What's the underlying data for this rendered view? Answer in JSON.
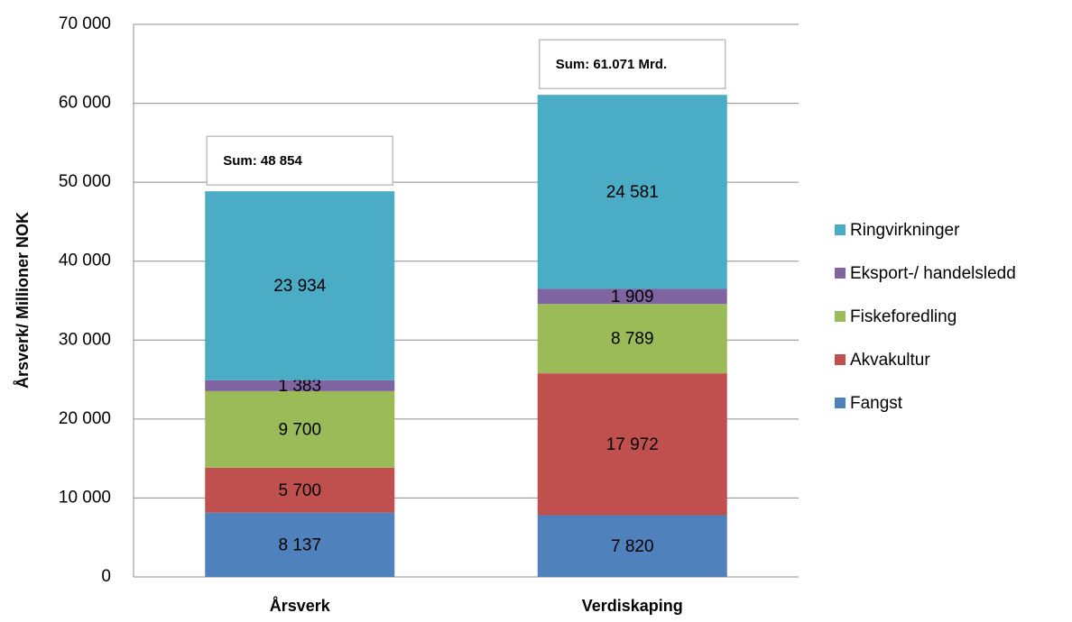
{
  "chart_data": {
    "type": "stacked_bar",
    "ylabel": "Årsverk/ Millioner NOK",
    "categories": [
      "Årsverk",
      "Verdiskaping"
    ],
    "series": [
      {
        "name": "Fangst",
        "color": "#4f81bd",
        "values": [
          8137,
          7820
        ],
        "value_labels": [
          "8 137",
          "7 820"
        ]
      },
      {
        "name": "Akvakultur",
        "color": "#c0504d",
        "values": [
          5700,
          17972
        ],
        "value_labels": [
          "5 700",
          "17 972"
        ]
      },
      {
        "name": "Fiskeforedling",
        "color": "#9bbb59",
        "values": [
          9700,
          8789
        ],
        "value_labels": [
          "9 700",
          "8 789"
        ]
      },
      {
        "name": "Eksport-/ handelsledd",
        "color": "#8064a2",
        "values": [
          1383,
          1909
        ],
        "value_labels": [
          "1 383",
          "1 909"
        ]
      },
      {
        "name": "Ringvirkninger",
        "color": "#4bacc6",
        "values": [
          23934,
          24581
        ],
        "value_labels": [
          "23 934",
          "24 581"
        ]
      }
    ],
    "annotations": [
      "Sum: 48 854",
      "Sum: 61.071 Mrd."
    ],
    "ylim": [
      0,
      70000
    ],
    "yticks": [
      0,
      {
        "value": 10000,
        "label": "10 000"
      },
      {
        "value": 20000,
        "label": "20 000"
      },
      {
        "value": 30000,
        "label": "30 000"
      },
      {
        "value": 40000,
        "label": "40 000"
      },
      {
        "value": 50000,
        "label": "50 000"
      },
      {
        "value": 60000,
        "label": "60 000"
      },
      {
        "value": 70000,
        "label": "70 000"
      }
    ],
    "grid": true,
    "legend": "right"
  }
}
